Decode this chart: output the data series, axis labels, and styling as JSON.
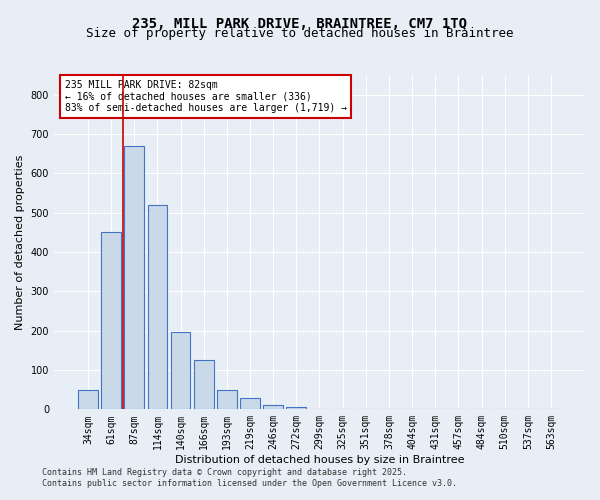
{
  "title_line1": "235, MILL PARK DRIVE, BRAINTREE, CM7 1TQ",
  "title_line2": "Size of property relative to detached houses in Braintree",
  "xlabel": "Distribution of detached houses by size in Braintree",
  "ylabel": "Number of detached properties",
  "categories": [
    "34sqm",
    "61sqm",
    "87sqm",
    "114sqm",
    "140sqm",
    "166sqm",
    "193sqm",
    "219sqm",
    "246sqm",
    "272sqm",
    "299sqm",
    "325sqm",
    "351sqm",
    "378sqm",
    "404sqm",
    "431sqm",
    "457sqm",
    "484sqm",
    "510sqm",
    "537sqm",
    "563sqm"
  ],
  "values": [
    50,
    450,
    670,
    520,
    197,
    126,
    50,
    30,
    10,
    5,
    2,
    1,
    0,
    0,
    0,
    0,
    0,
    0,
    0,
    0,
    0
  ],
  "bar_color": "#c9d9e8",
  "bar_edge_color": "#4472c4",
  "vline_color": "#cc0000",
  "vline_x_index": 1.5,
  "annotation_text": "235 MILL PARK DRIVE: 82sqm\n← 16% of detached houses are smaller (336)\n83% of semi-detached houses are larger (1,719) →",
  "annotation_box_color": "#ffffff",
  "annotation_box_edge_color": "#cc0000",
  "ylim": [
    0,
    850
  ],
  "yticks": [
    0,
    100,
    200,
    300,
    400,
    500,
    600,
    700,
    800
  ],
  "background_color": "#e8eef5",
  "grid_color": "#ffffff",
  "footer_line1": "Contains HM Land Registry data © Crown copyright and database right 2025.",
  "footer_line2": "Contains public sector information licensed under the Open Government Licence v3.0.",
  "title_fontsize": 10,
  "subtitle_fontsize": 9,
  "axis_label_fontsize": 8,
  "tick_fontsize": 7,
  "annotation_fontsize": 7,
  "footer_fontsize": 6
}
